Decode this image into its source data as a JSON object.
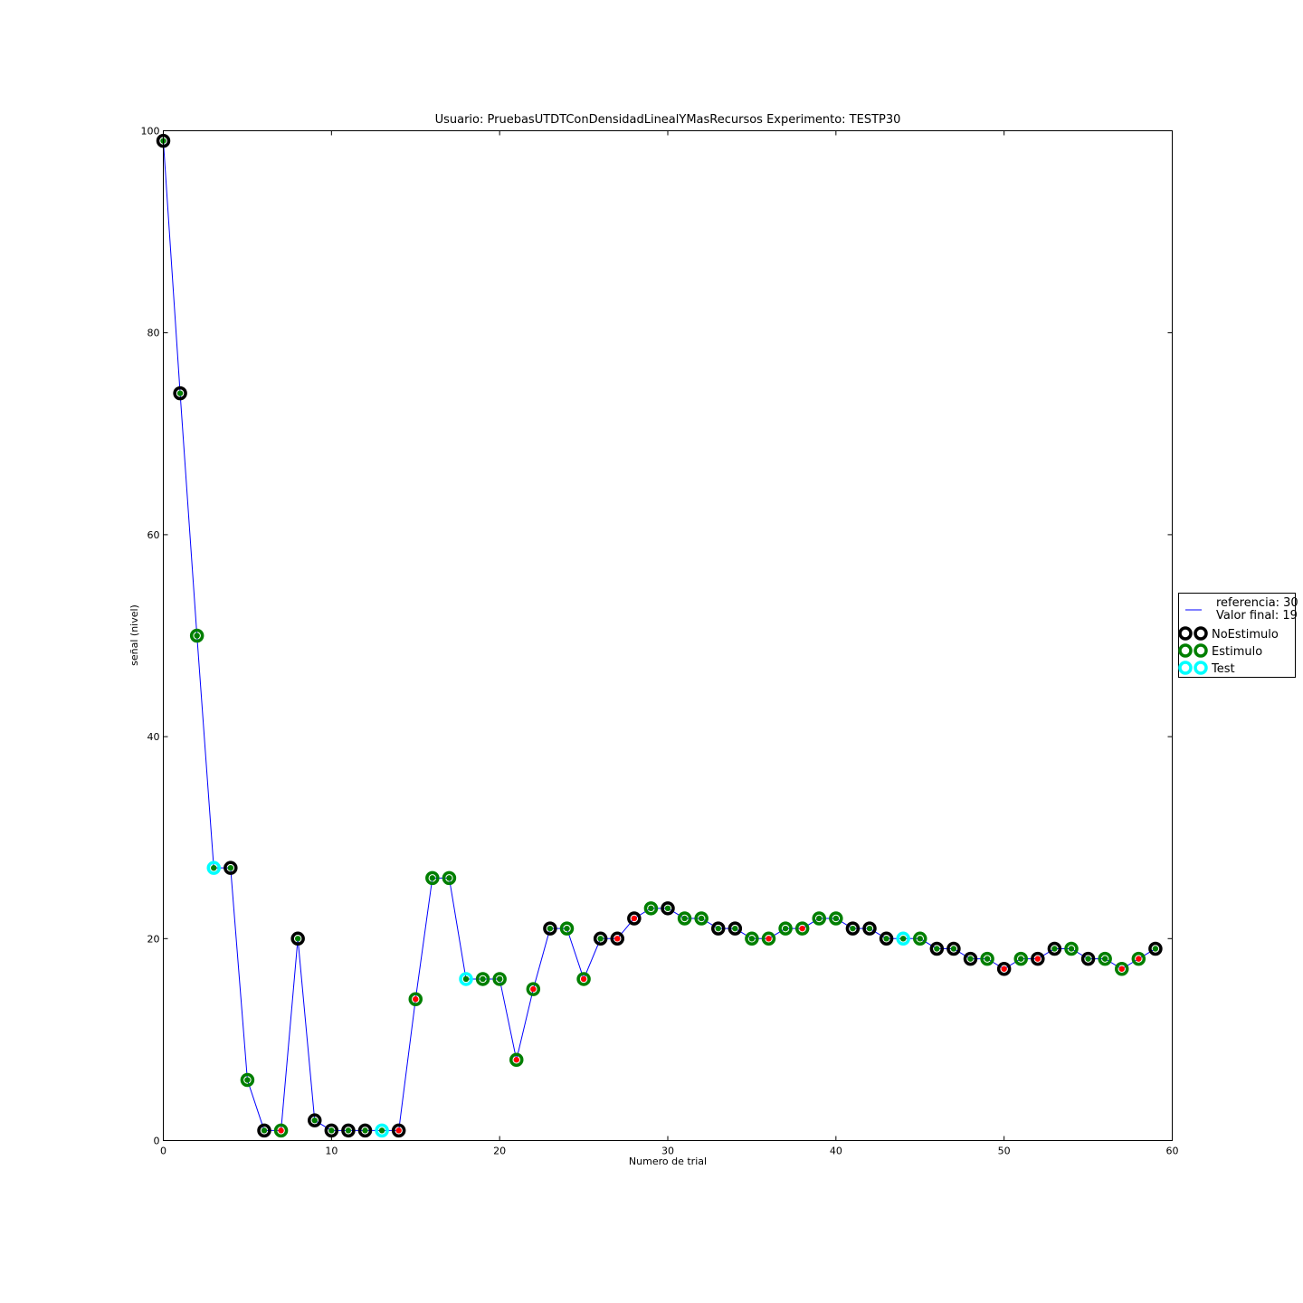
{
  "chart_data": {
    "type": "line",
    "title": "Usuario: PruebasUTDTConDensidadLinealYMasRecursos Experimento: TESTP30",
    "xlabel": "Numero de trial",
    "ylabel": "señal (nivel)",
    "xlim": [
      0,
      60
    ],
    "ylim": [
      0,
      100
    ],
    "xticks": [
      "0",
      "10",
      "20",
      "30",
      "40",
      "50",
      "60"
    ],
    "yticks": [
      "0",
      "20",
      "40",
      "60",
      "80",
      "100"
    ],
    "grid": false,
    "legend_position": "right",
    "legend": {
      "line_label_1": "referencia: 30",
      "line_label_2": "Valor final: 19",
      "marker_entries": [
        {
          "label": "NoEstimulo",
          "color": "#000000"
        },
        {
          "label": "Estimulo",
          "color": "#007f00"
        },
        {
          "label": "Test",
          "color": "#00ffff"
        }
      ]
    },
    "line_color": "#0000ff",
    "inner_colors": {
      "correct": "#007f00",
      "incorrect": "#ff0000"
    },
    "series": [
      {
        "x": [
          0,
          1,
          2,
          3,
          4,
          5,
          6,
          7,
          8,
          9,
          10,
          11,
          12,
          13,
          14,
          15,
          16,
          17,
          18,
          19,
          20,
          21,
          22,
          23,
          24,
          25,
          26,
          27,
          28,
          29,
          30,
          31,
          32,
          33,
          34,
          35,
          36,
          37,
          38,
          39,
          40,
          41,
          42,
          43,
          44,
          45,
          46,
          47,
          48,
          49,
          50,
          51,
          52,
          53,
          54,
          55,
          56,
          57,
          58,
          59
        ],
        "y": [
          99,
          74,
          50,
          27,
          27,
          6,
          1,
          1,
          20,
          2,
          1,
          1,
          1,
          1,
          1,
          14,
          26,
          26,
          16,
          16,
          16,
          8,
          15,
          21,
          21,
          16,
          20,
          20,
          22,
          23,
          23,
          22,
          22,
          21,
          21,
          20,
          20,
          21,
          21,
          22,
          22,
          21,
          21,
          20,
          20,
          20,
          19,
          19,
          18,
          18,
          17,
          18,
          18,
          19,
          19,
          18,
          18,
          17,
          18,
          19
        ],
        "marker_type": [
          "NoEstimulo",
          "NoEstimulo",
          "Estimulo",
          "Test",
          "NoEstimulo",
          "Estimulo",
          "NoEstimulo",
          "Estimulo",
          "NoEstimulo",
          "NoEstimulo",
          "NoEstimulo",
          "NoEstimulo",
          "NoEstimulo",
          "Test",
          "NoEstimulo",
          "Estimulo",
          "Estimulo",
          "Estimulo",
          "Test",
          "Estimulo",
          "Estimulo",
          "Estimulo",
          "Estimulo",
          "NoEstimulo",
          "Estimulo",
          "Estimulo",
          "NoEstimulo",
          "NoEstimulo",
          "NoEstimulo",
          "Estimulo",
          "NoEstimulo",
          "Estimulo",
          "Estimulo",
          "NoEstimulo",
          "NoEstimulo",
          "Estimulo",
          "Estimulo",
          "Estimulo",
          "Estimulo",
          "Estimulo",
          "Estimulo",
          "NoEstimulo",
          "NoEstimulo",
          "NoEstimulo",
          "Test",
          "Estimulo",
          "NoEstimulo",
          "NoEstimulo",
          "NoEstimulo",
          "Estimulo",
          "NoEstimulo",
          "Estimulo",
          "NoEstimulo",
          "NoEstimulo",
          "Estimulo",
          "NoEstimulo",
          "Estimulo",
          "Estimulo",
          "Estimulo",
          "NoEstimulo"
        ],
        "response": [
          "correct",
          "correct",
          "correct",
          "correct",
          "correct",
          "correct",
          "correct",
          "incorrect",
          "correct",
          "correct",
          "correct",
          "correct",
          "correct",
          "correct",
          "incorrect",
          "incorrect",
          "correct",
          "correct",
          "correct",
          "correct",
          "correct",
          "incorrect",
          "incorrect",
          "correct",
          "correct",
          "incorrect",
          "correct",
          "incorrect",
          "incorrect",
          "correct",
          "correct",
          "correct",
          "correct",
          "correct",
          "correct",
          "correct",
          "incorrect",
          "correct",
          "incorrect",
          "correct",
          "correct",
          "correct",
          "correct",
          "correct",
          "correct",
          "correct",
          "correct",
          "correct",
          "correct",
          "correct",
          "incorrect",
          "correct",
          "incorrect",
          "correct",
          "correct",
          "correct",
          "correct",
          "incorrect",
          "incorrect",
          "correct"
        ]
      }
    ]
  }
}
